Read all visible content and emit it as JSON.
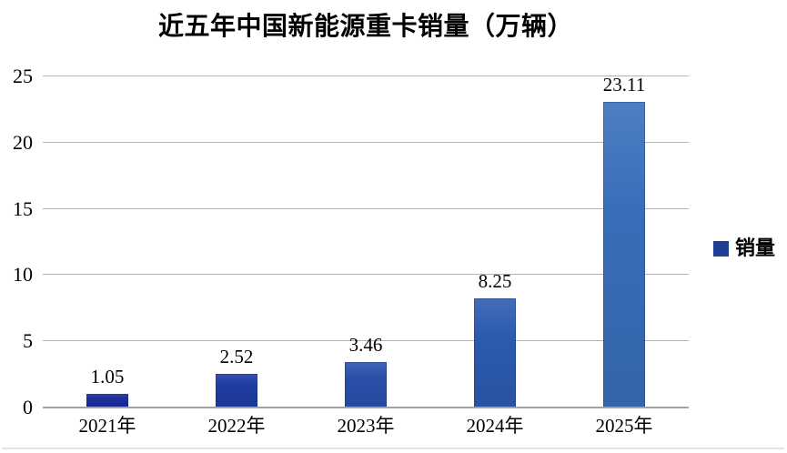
{
  "chart_data": {
    "type": "bar",
    "title": "近五年中国新能源重卡销量（万辆）",
    "categories": [
      "2021年",
      "2022年",
      "2023年",
      "2024年",
      "2025年"
    ],
    "series": [
      {
        "name": "销量",
        "values": [
          1.05,
          2.52,
          3.46,
          8.25,
          23.11
        ]
      }
    ],
    "value_labels": [
      "1.05",
      "2.52",
      "3.46",
      "8.25",
      "23.11"
    ],
    "xlabel": "",
    "ylabel": "",
    "ylim": [
      0,
      25
    ],
    "yticks": [
      0,
      5,
      10,
      15,
      20,
      25
    ],
    "grid": "horizontal",
    "legend_position": "right",
    "colors": {
      "bars": [
        "#1b2fa0",
        "#1f3da6",
        "#2a52ad",
        "#2d5cb2",
        "#3a70bc"
      ],
      "legend_swatch": "#1e3f96",
      "gridline": "#b3b3b3",
      "axis_line": "#a3a3a3",
      "text": "#000000",
      "background": "#ffffff"
    }
  }
}
